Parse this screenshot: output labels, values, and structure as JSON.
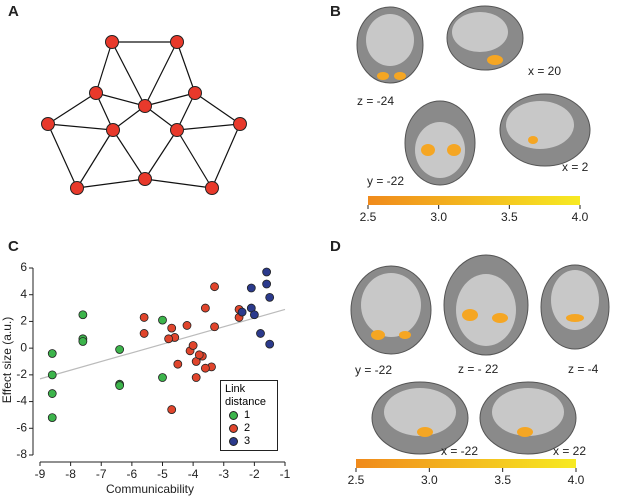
{
  "panel_labels": [
    "A",
    "B",
    "C",
    "D"
  ],
  "panel_b": {
    "slice_labels": [
      "x = 20",
      "z = -24",
      "x = 2",
      "y = -22"
    ],
    "colorbar": {
      "lim": [
        2.5,
        4.0
      ],
      "colors": [
        "#f08a1c",
        "#f7ea22"
      ],
      "ticks": [
        2.5,
        {
          "value": 3,
          "label": "3.0"
        },
        3.5,
        {
          "value": 4,
          "label": "4.0"
        }
      ]
    }
  },
  "panel_d": {
    "slice_labels": [
      "y = -22",
      "z = - 22",
      "z = -4",
      "x = -22",
      "x = 22"
    ],
    "colorbar": {
      "lim": [
        2.5,
        4.0
      ],
      "colors": [
        "#f08a1c",
        "#f7ea22"
      ],
      "ticks": [
        2.5,
        {
          "value": 3,
          "label": "3.0"
        },
        3.5,
        {
          "value": 4,
          "label": "4.0"
        }
      ]
    }
  },
  "chart_data": {
    "type": "scatter",
    "xlabel": "Communicability",
    "ylabel": "Effect size (a.u.)",
    "xlim": [
      -9,
      -1
    ],
    "xticks": [
      -9,
      -8,
      -7,
      -6,
      -5,
      -4,
      -3,
      -2,
      -1
    ],
    "ylim": [
      -8,
      6
    ],
    "yticks": [
      -8,
      -6,
      -4,
      -2,
      0,
      2,
      4,
      6
    ],
    "legend_title": "Link distance",
    "series": [
      {
        "name": "1",
        "color": "#3cb44b",
        "x": [
          -8.6,
          -8.6,
          -8.6,
          -8.6,
          -7.6,
          -7.6,
          -7.6,
          -6.4,
          -6.4,
          -6.4,
          -5.0,
          -5.0
        ],
        "values": [
          -0.4,
          -2.0,
          -3.4,
          -5.2,
          2.5,
          0.7,
          0.5,
          -0.1,
          -2.7,
          -2.8,
          2.1,
          -2.2
        ]
      },
      {
        "name": "2",
        "color": "#e0452c",
        "x": [
          -5.6,
          -5.6,
          -4.7,
          -4.7,
          -4.6,
          -4.5,
          -4.2,
          -4.1,
          -4.0,
          -3.9,
          -3.7,
          -3.4,
          -3.9,
          -3.6,
          -3.3,
          -3.3,
          -3.6,
          -2.5,
          -2.5,
          -4.8,
          -3.8
        ],
        "values": [
          2.3,
          1.1,
          1.5,
          -4.6,
          0.8,
          -1.2,
          1.7,
          -0.2,
          0.2,
          -2.2,
          -0.6,
          -1.4,
          -1.0,
          -1.5,
          4.6,
          1.6,
          3.0,
          2.3,
          2.9,
          0.7,
          -0.5
        ]
      },
      {
        "name": "3",
        "color": "#2b3a8c",
        "x": [
          -2.1,
          -2.1,
          -2.0,
          -1.8,
          -1.6,
          -1.6,
          -1.5,
          -1.5,
          -2.4
        ],
        "values": [
          4.5,
          3.0,
          2.5,
          1.1,
          5.7,
          4.8,
          3.8,
          0.3,
          2.7
        ]
      }
    ],
    "trend_line": {
      "color": "#bbbbbb",
      "x": [
        -9,
        -1
      ],
      "values": [
        -2.3,
        2.9
      ]
    }
  }
}
